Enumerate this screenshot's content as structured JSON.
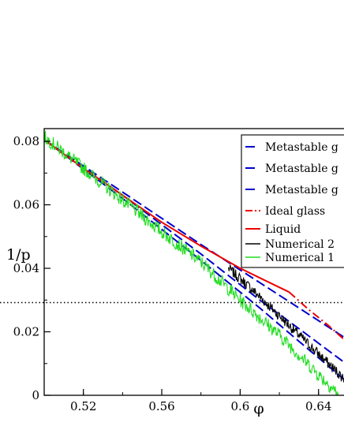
{
  "chart_data": {
    "type": "line",
    "title": "",
    "xlabel": "φ",
    "ylabel": "1/p",
    "xlim": [
      0.5,
      0.655
    ],
    "ylim": [
      0,
      0.084
    ],
    "xticks": [
      {
        "value": 0.52,
        "label": "0.52"
      },
      {
        "value": 0.56,
        "label": "0.56"
      },
      {
        "value": 0.6,
        "label": "0.6"
      },
      {
        "value": 0.64,
        "label": "0.64"
      }
    ],
    "yticks": [
      {
        "value": 0,
        "label": "0"
      },
      {
        "value": 0.02,
        "label": "0.02"
      },
      {
        "value": 0.04,
        "label": "0.04"
      },
      {
        "value": 0.06,
        "label": "0.06"
      },
      {
        "value": 0.08,
        "label": "0.08"
      }
    ],
    "grid": false,
    "legend_position": "top-right",
    "reference_line": {
      "y": 0.0292,
      "style": "dotted",
      "color": "#000000"
    },
    "series": [
      {
        "name": "Metastable g",
        "color": "#0000cc",
        "style": "dashed",
        "x": [
          0.5,
          0.54,
          0.58,
          0.61,
          0.63,
          0.655
        ],
        "y": [
          0.0805,
          0.064,
          0.0475,
          0.0355,
          0.0275,
          0.0175
        ]
      },
      {
        "name": "Metastable g",
        "color": "#0000cc",
        "style": "dashed",
        "x": [
          0.5,
          0.54,
          0.58,
          0.61,
          0.63,
          0.655
        ],
        "y": [
          0.0805,
          0.063,
          0.0445,
          0.03,
          0.021,
          0.0095
        ]
      },
      {
        "name": "Metastable g",
        "color": "#0000cc",
        "style": "dashed",
        "x": [
          0.5,
          0.54,
          0.58,
          0.61,
          0.63,
          0.655
        ],
        "y": [
          0.0805,
          0.062,
          0.0425,
          0.0275,
          0.017,
          0.004
        ]
      },
      {
        "name": "Ideal glass",
        "color": "#ee0000",
        "style": "dashdot",
        "x": [
          0.625,
          0.635,
          0.645,
          0.655
        ],
        "y": [
          0.0325,
          0.027,
          0.022,
          0.0165
        ]
      },
      {
        "name": "Liquid",
        "color": "#ee0000",
        "style": "solid",
        "x": [
          0.5,
          0.52,
          0.54,
          0.56,
          0.58,
          0.6,
          0.615,
          0.625
        ],
        "y": [
          0.0805,
          0.0715,
          0.063,
          0.0545,
          0.047,
          0.04,
          0.0355,
          0.0325
        ]
      },
      {
        "name": "Numerical 2",
        "color": "#000000",
        "style": "solid-noisy",
        "x": [
          0.594,
          0.605,
          0.615,
          0.625,
          0.635,
          0.645,
          0.655
        ],
        "y": [
          0.04,
          0.034,
          0.028,
          0.022,
          0.016,
          0.01,
          0.004
        ]
      },
      {
        "name": "Numerical 1",
        "color": "#22dd22",
        "style": "solid-noisy",
        "x": [
          0.5,
          0.52,
          0.54,
          0.56,
          0.58,
          0.6,
          0.62,
          0.64,
          0.65
        ],
        "y": [
          0.0815,
          0.0715,
          0.0615,
          0.0515,
          0.042,
          0.03,
          0.019,
          0.0065,
          0.0005
        ]
      }
    ]
  }
}
